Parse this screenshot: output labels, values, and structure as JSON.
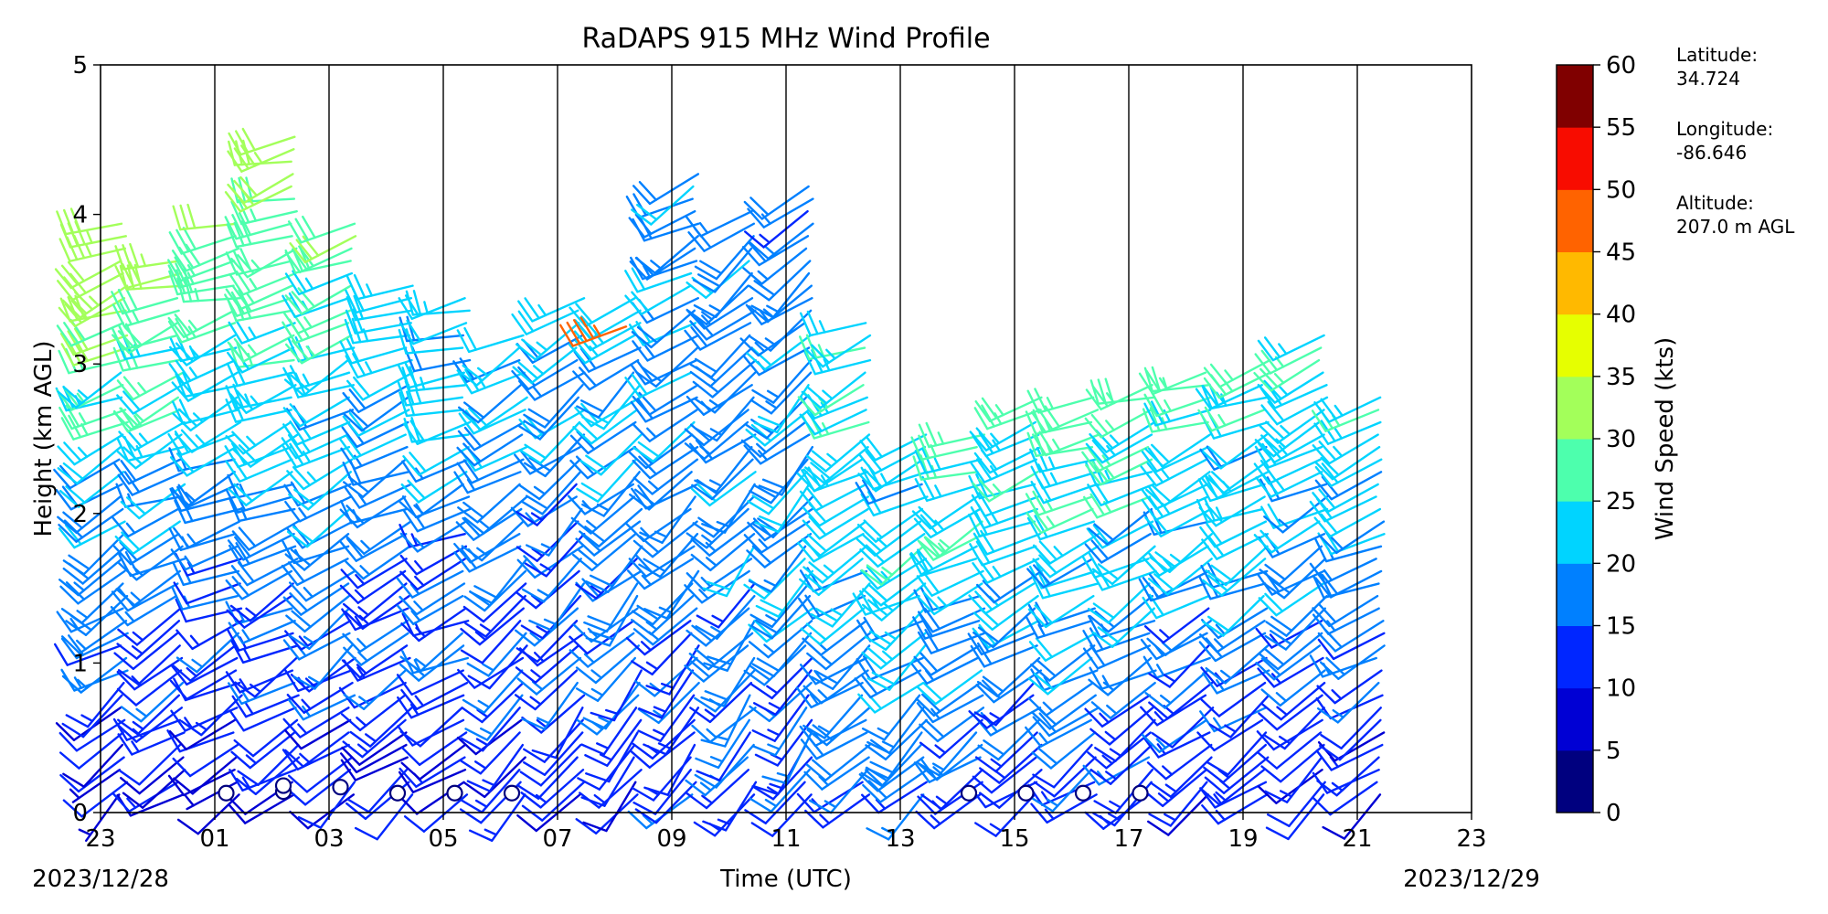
{
  "chart_data": {
    "type": "wind_barb_profile",
    "title": "RaDAPS 915 MHz Wind Profile",
    "xlabel": "Time (UTC)",
    "ylabel": "Height (km AGL)",
    "xlim": [
      0,
      24
    ],
    "ylim": [
      0,
      5
    ],
    "x_tick_labels": [
      "23",
      "01",
      "03",
      "05",
      "07",
      "09",
      "11",
      "13",
      "15",
      "17",
      "19",
      "21",
      "23"
    ],
    "x_tick_hours": [
      0,
      2,
      4,
      6,
      8,
      10,
      12,
      14,
      16,
      18,
      20,
      22,
      24
    ],
    "y_ticks": [
      0,
      1,
      2,
      3,
      4,
      5
    ],
    "vertical_lines_hours": [
      2,
      4,
      6,
      8,
      10,
      12,
      14,
      16,
      18,
      20,
      22
    ],
    "date_start": "2023/12/28",
    "date_end": "2023/12/29",
    "grid": false,
    "colorbar": {
      "label": "Wind Speed (kts)",
      "ticks": [
        0,
        5,
        10,
        15,
        20,
        25,
        30,
        35,
        40,
        45,
        50,
        55,
        60
      ],
      "colors": [
        "#00007f",
        "#0000d4",
        "#0026ff",
        "#0080ff",
        "#00d4ff",
        "#4dffad",
        "#a3ff5a",
        "#e6ff00",
        "#ffb900",
        "#ff6300",
        "#f80c00",
        "#800000"
      ]
    },
    "station": {
      "latitude_label": "Latitude:",
      "latitude": "34.724",
      "longitude_label": "Longitude:",
      "longitude": "-86.646",
      "altitude_label": "Altitude:",
      "altitude": "207.0 m AGL"
    },
    "profiles": [
      {
        "hour": 0.4,
        "top": 4.0,
        "lowSpd": 8,
        "midSpd": 18,
        "topSpd": 34,
        "dir": 250
      },
      {
        "hour": 1.4,
        "top": 3.7,
        "lowSpd": 9,
        "midSpd": 17,
        "topSpd": 31,
        "dir": 255
      },
      {
        "hour": 2.4,
        "top": 4.0,
        "lowSpd": 8,
        "midSpd": 16,
        "topSpd": 30,
        "dir": 255
      },
      {
        "hour": 3.4,
        "top": 4.6,
        "lowSpd": 10,
        "midSpd": 16,
        "topSpd": 32,
        "dir": 255
      },
      {
        "hour": 4.4,
        "top": 4.0,
        "lowSpd": 10,
        "midSpd": 18,
        "topSpd": 28,
        "dir": 250
      },
      {
        "hour": 5.4,
        "top": 3.6,
        "lowSpd": 9,
        "midSpd": 16,
        "topSpd": 24,
        "dir": 250
      },
      {
        "hour": 6.4,
        "top": 3.5,
        "lowSpd": 9,
        "midSpd": 17,
        "topSpd": 22,
        "dir": 255
      },
      {
        "hour": 7.4,
        "top": 3.2,
        "lowSpd": 10,
        "midSpd": 16,
        "topSpd": 22,
        "dir": 240
      },
      {
        "hour": 8.4,
        "top": 3.5,
        "lowSpd": 10,
        "midSpd": 16,
        "topSpd": 22,
        "dir": 235
      },
      {
        "hour": 9.4,
        "top": 3.5,
        "lowSpd": 11,
        "midSpd": 17,
        "topSpd": 22,
        "dir": 235
      },
      {
        "hour": 10.4,
        "top": 4.3,
        "lowSpd": 12,
        "midSpd": 18,
        "topSpd": 20,
        "dir": 240
      },
      {
        "hour": 11.4,
        "top": 4.1,
        "lowSpd": 12,
        "midSpd": 18,
        "topSpd": 18,
        "dir": 235
      },
      {
        "hour": 12.4,
        "top": 4.2,
        "lowSpd": 13,
        "midSpd": 20,
        "topSpd": 16,
        "dir": 235
      },
      {
        "hour": 13.4,
        "top": 3.3,
        "lowSpd": 14,
        "midSpd": 22,
        "topSpd": 24,
        "dir": 245
      },
      {
        "hour": 14.4,
        "top": 2.6,
        "lowSpd": 15,
        "midSpd": 24,
        "topSpd": 20,
        "dir": 245
      },
      {
        "hour": 15.4,
        "top": 2.6,
        "lowSpd": 13,
        "midSpd": 24,
        "topSpd": 26,
        "dir": 250
      },
      {
        "hour": 16.4,
        "top": 2.8,
        "lowSpd": 12,
        "midSpd": 22,
        "topSpd": 25,
        "dir": 250
      },
      {
        "hour": 17.4,
        "top": 2.8,
        "lowSpd": 12,
        "midSpd": 22,
        "topSpd": 26,
        "dir": 250
      },
      {
        "hour": 18.4,
        "top": 2.9,
        "lowSpd": 12,
        "midSpd": 21,
        "topSpd": 27,
        "dir": 250
      },
      {
        "hour": 19.4,
        "top": 3.0,
        "lowSpd": 11,
        "midSpd": 20,
        "topSpd": 27,
        "dir": 250
      },
      {
        "hour": 20.4,
        "top": 3.1,
        "lowSpd": 10,
        "midSpd": 20,
        "topSpd": 26,
        "dir": 250
      },
      {
        "hour": 21.4,
        "top": 3.2,
        "lowSpd": 10,
        "midSpd": 19,
        "topSpd": 25,
        "dir": 250
      },
      {
        "hour": 22.4,
        "top": 2.8,
        "lowSpd": 10,
        "midSpd": 18,
        "topSpd": 24,
        "dir": 250
      }
    ],
    "calm_points": [
      {
        "hour": 2.2,
        "height": 0.13
      },
      {
        "hour": 3.2,
        "height": 0.14
      },
      {
        "hour": 3.2,
        "height": 0.18
      },
      {
        "hour": 4.2,
        "height": 0.17
      },
      {
        "hour": 5.2,
        "height": 0.13
      },
      {
        "hour": 6.2,
        "height": 0.13
      },
      {
        "hour": 7.2,
        "height": 0.13
      },
      {
        "hour": 15.2,
        "height": 0.13
      },
      {
        "hour": 16.2,
        "height": 0.13
      },
      {
        "hour": 17.2,
        "height": 0.13
      },
      {
        "hour": 18.2,
        "height": 0.13
      }
    ],
    "highlight_barbs": [
      {
        "hour": 9.2,
        "height": 3.25,
        "speed": 45,
        "dir": 250
      }
    ]
  }
}
